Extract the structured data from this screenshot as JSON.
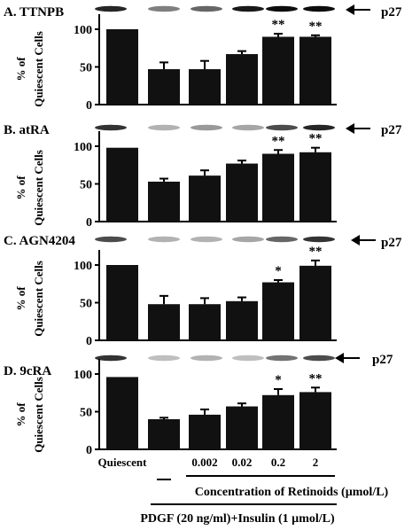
{
  "protein_label": "p27",
  "ylabel": "% of\nQuiescent Cells",
  "x_axis": {
    "categories": [
      "Quiescent",
      "",
      "0.002",
      "0.02",
      "0.2",
      "2"
    ],
    "concentration_label": "Concentration of Retinoids (µmol/L)",
    "treatment_label": "PDGF (20 ng/ml)+Insulin (1 µmol/L)"
  },
  "colors": {
    "bar": "#111111",
    "axis": "#000000"
  },
  "chart_data": [
    {
      "type": "bar",
      "title": "A.  TTNPB",
      "categories": [
        "Quiescent",
        "",
        "0.002",
        "0.02",
        "0.2",
        "2"
      ],
      "values": [
        100,
        47,
        47,
        67,
        90,
        90
      ],
      "errors": [
        0,
        9,
        11,
        4,
        4,
        2
      ],
      "significance": [
        "",
        "",
        "",
        "",
        "**",
        "**"
      ],
      "yticks": [
        0,
        50,
        100
      ],
      "ylim": [
        0,
        120
      ],
      "blot_intensity": [
        0.85,
        0.5,
        0.6,
        0.9,
        0.95,
        0.95
      ]
    },
    {
      "type": "bar",
      "title": "B.  atRA",
      "categories": [
        "Quiescent",
        "",
        "0.002",
        "0.02",
        "0.2",
        "2"
      ],
      "values": [
        98,
        53,
        61,
        77,
        90,
        92
      ],
      "errors": [
        0,
        4,
        7,
        4,
        5,
        6
      ],
      "significance": [
        "",
        "",
        "",
        "",
        "**",
        "**"
      ],
      "yticks": [
        0,
        50,
        100
      ],
      "ylim": [
        0,
        120
      ],
      "blot_intensity": [
        0.8,
        0.3,
        0.4,
        0.35,
        0.7,
        0.85
      ]
    },
    {
      "type": "bar",
      "title": "C.  AGN4204",
      "categories": [
        "Quiescent",
        "",
        "0.002",
        "0.02",
        "0.2",
        "2"
      ],
      "values": [
        100,
        48,
        48,
        52,
        77,
        99
      ],
      "errors": [
        0,
        11,
        8,
        5,
        3,
        7
      ],
      "significance": [
        "",
        "",
        "",
        "",
        "*",
        "**"
      ],
      "yticks": [
        0,
        50,
        100
      ],
      "ylim": [
        0,
        120
      ],
      "blot_intensity": [
        0.7,
        0.3,
        0.3,
        0.35,
        0.6,
        0.8
      ]
    },
    {
      "type": "bar",
      "title": "D.  9cRA",
      "categories": [
        "Quiescent",
        "",
        "0.002",
        "0.02",
        "0.2",
        "2"
      ],
      "values": [
        96,
        40,
        46,
        57,
        72,
        76
      ],
      "errors": [
        0,
        2,
        7,
        4,
        8,
        6
      ],
      "significance": [
        "",
        "",
        "",
        "",
        "*",
        "**"
      ],
      "yticks": [
        0,
        50,
        100
      ],
      "ylim": [
        0,
        120
      ],
      "blot_intensity": [
        0.8,
        0.25,
        0.3,
        0.25,
        0.55,
        0.7
      ]
    }
  ]
}
